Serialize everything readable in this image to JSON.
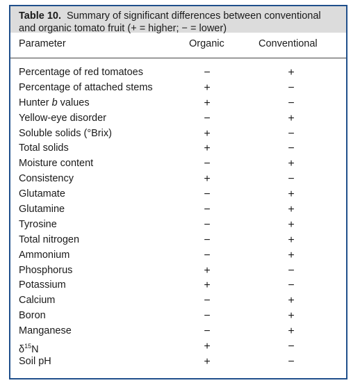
{
  "caption": {
    "label": "Table 10.",
    "text_line1": "Summary of significant differences between conventional",
    "text_line2": "and organic tomato fruit (+ = higher; − = lower)"
  },
  "headers": {
    "parameter": "Parameter",
    "organic": "Organic",
    "conventional": "Conventional"
  },
  "rows": [
    {
      "parameter": "Percentage of red tomatoes",
      "organic": "−",
      "conventional": "+"
    },
    {
      "parameter": "Percentage of attached stems",
      "organic": "+",
      "conventional": "−"
    },
    {
      "parameter_pre": "Hunter ",
      "parameter_italic": "b",
      "parameter_post": " values",
      "organic": "+",
      "conventional": "−"
    },
    {
      "parameter": "Yellow-eye disorder",
      "organic": "−",
      "conventional": "+"
    },
    {
      "parameter": "Soluble solids (°Brix)",
      "organic": "+",
      "conventional": "−"
    },
    {
      "parameter": "Total solids",
      "organic": "+",
      "conventional": "−"
    },
    {
      "parameter": "Moisture content",
      "organic": "−",
      "conventional": "+"
    },
    {
      "parameter": "Consistency",
      "organic": "+",
      "conventional": "−"
    },
    {
      "parameter": "Glutamate",
      "organic": "−",
      "conventional": "+"
    },
    {
      "parameter": "Glutamine",
      "organic": "−",
      "conventional": "+"
    },
    {
      "parameter": "Tyrosine",
      "organic": "−",
      "conventional": "+"
    },
    {
      "parameter": "Total nitrogen",
      "organic": "−",
      "conventional": "+"
    },
    {
      "parameter": "Ammonium",
      "organic": "−",
      "conventional": "+"
    },
    {
      "parameter": "Phosphorus",
      "organic": "+",
      "conventional": "−"
    },
    {
      "parameter": "Potassium",
      "organic": "+",
      "conventional": "−"
    },
    {
      "parameter": "Calcium",
      "organic": "−",
      "conventional": "+"
    },
    {
      "parameter": "Boron",
      "organic": "−",
      "conventional": "+"
    },
    {
      "parameter": "Manganese",
      "organic": "−",
      "conventional": "+"
    },
    {
      "parameter_pre": "δ",
      "parameter_sup": "15",
      "parameter_post": "N",
      "organic": "+",
      "conventional": "−"
    },
    {
      "parameter": "Soil pH",
      "organic": "+",
      "conventional": "−"
    }
  ]
}
